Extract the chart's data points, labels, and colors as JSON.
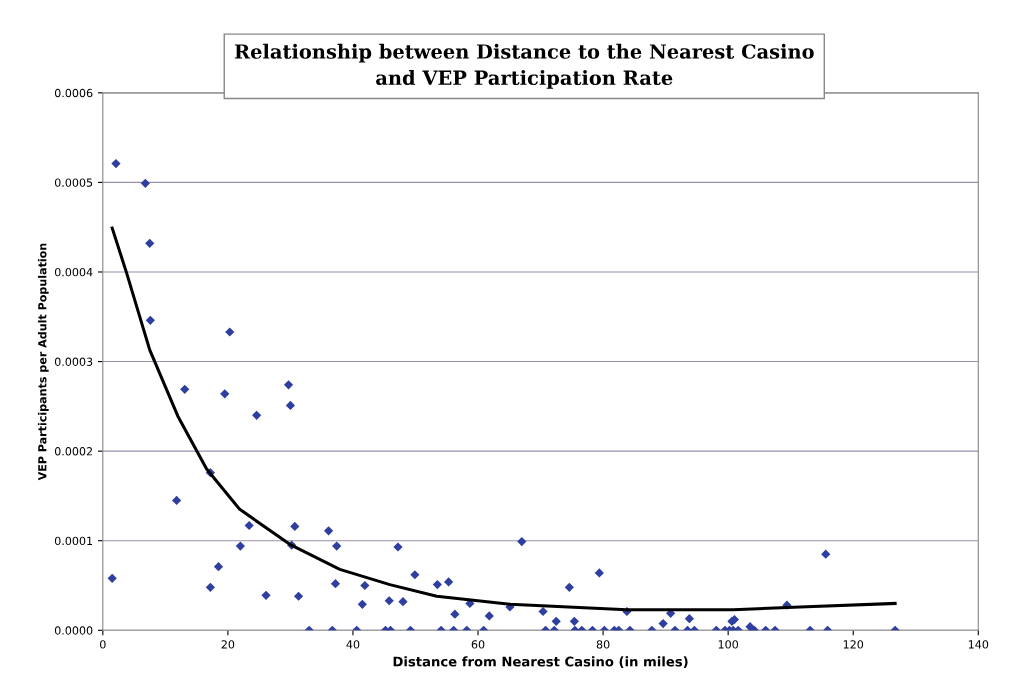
{
  "chart_data": {
    "type": "scatter",
    "title": "Relationship between Distance to the Nearest Casino\nand VEP Participation Rate",
    "xlabel": "Distance from Nearest Casino (in miles)",
    "ylabel": "VEP Participants per Adult Population",
    "xlim": [
      0,
      140
    ],
    "ylim": [
      0,
      0.0006
    ],
    "xticks": [
      0,
      20,
      40,
      60,
      80,
      100,
      120,
      140
    ],
    "yticks": [
      {
        "value": 0,
        "label": "0.0000"
      },
      {
        "value": 0.0001,
        "label": "0.0001"
      },
      {
        "value": 0.0002,
        "label": "0.0002"
      },
      {
        "value": 0.0003,
        "label": "0.0003"
      },
      {
        "value": 0.0004,
        "label": "0.0004"
      },
      {
        "value": 0.0005,
        "label": "0.0005"
      },
      {
        "value": 0.0006,
        "label": "0.0006"
      }
    ],
    "grid": "y",
    "legend": false,
    "series": [
      {
        "marker": "diamond",
        "color": "#2f3f9f",
        "x": [
          2.1,
          6.8,
          7.5,
          7.6,
          20.3,
          13.1,
          19.5,
          24.6,
          29.7,
          30.0,
          17.2,
          11.8,
          23.4,
          22.0,
          30.7,
          30.2,
          36.1,
          37.4,
          1.5,
          18.5,
          17.2,
          26.1,
          31.3,
          37.2,
          41.9,
          41.5,
          45.8,
          48.0,
          47.2,
          49.9,
          53.5,
          55.3,
          58.7,
          56.3,
          61.8,
          65.1,
          67.0,
          70.4,
          72.5,
          74.6,
          75.4,
          79.4,
          83.8,
          90.8,
          89.6,
          93.8,
          101.0,
          100.6,
          103.5,
          109.4,
          115.6,
          33.0,
          36.7,
          40.6,
          45.2,
          46.0,
          49.2,
          54.1,
          56.1,
          58.2,
          60.9,
          70.8,
          72.2,
          75.5,
          76.6,
          78.3,
          80.2,
          81.8,
          82.5,
          84.3,
          87.8,
          91.5,
          93.5,
          94.6,
          98.1,
          99.5,
          100.2,
          100.8,
          101.6,
          103.9,
          104.2,
          106.0,
          107.5,
          113.1,
          115.9,
          126.7
        ],
        "values": [
          0.000521,
          0.000499,
          0.000432,
          0.000346,
          0.000333,
          0.000269,
          0.000264,
          0.00024,
          0.000274,
          0.000251,
          0.000176,
          0.000145,
          0.000117,
          9.4e-05,
          0.000116,
          9.5e-05,
          0.000111,
          9.4e-05,
          5.8e-05,
          7.1e-05,
          4.8e-05,
          3.9e-05,
          3.8e-05,
          5.2e-05,
          5e-05,
          2.9e-05,
          3.3e-05,
          3.2e-05,
          9.3e-05,
          6.2e-05,
          5.1e-05,
          5.4e-05,
          3e-05,
          1.8e-05,
          1.6e-05,
          2.6e-05,
          9.9e-05,
          2.1e-05,
          1e-05,
          4.8e-05,
          1e-05,
          6.4e-05,
          2.1e-05,
          1.9e-05,
          7.5e-06,
          1.3e-05,
          1.2e-05,
          1e-05,
          4e-06,
          2.8e-05,
          8.5e-05,
          0,
          0,
          0,
          0,
          0,
          0,
          0,
          0,
          0,
          0,
          0,
          0,
          0,
          0,
          0,
          0,
          0,
          0,
          0,
          0,
          0,
          0,
          0,
          0,
          0,
          0,
          0,
          0,
          0,
          0,
          0,
          0,
          0,
          0,
          0
        ]
      },
      {
        "type": "line",
        "marker": "none",
        "line_style": "solid",
        "color": "#000000",
        "x": [
          1.5,
          3.8,
          7.5,
          12,
          16.6,
          21.9,
          29.9,
          37.9,
          45.9,
          53.4,
          65.1,
          83.8,
          100.8,
          111.5,
          126.7
        ],
        "values": [
          0.000449,
          0.000399,
          0.000313,
          0.000239,
          0.00018,
          0.000135,
          9.6e-05,
          6.8e-05,
          5.1e-05,
          3.8e-05,
          2.9e-05,
          2.3e-05,
          2.3e-05,
          2.6e-05,
          3e-05
        ]
      }
    ]
  }
}
